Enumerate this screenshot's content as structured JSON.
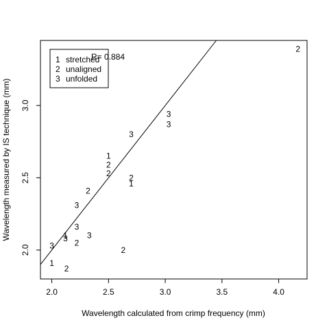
{
  "chart_data": {
    "type": "scatter",
    "title": "",
    "xlabel": "Wavelength calculated from crimp frequency (mm)",
    "ylabel": "Wavelength measured by IS technique (mm)",
    "xlim": [
      1.9,
      4.25
    ],
    "ylim": [
      1.8,
      3.45
    ],
    "x_ticks": [
      2.0,
      2.5,
      3.0,
      3.5,
      4.0
    ],
    "x_tick_labels": [
      "2.0",
      "2.5",
      "3.0",
      "3.5",
      "4.0"
    ],
    "y_ticks": [
      2.0,
      2.5,
      3.0
    ],
    "y_tick_labels": [
      "2.0",
      "2.5",
      "3.0"
    ],
    "grid": false,
    "legend": {
      "placement": "top-left",
      "entries": [
        {
          "symbol": "1",
          "label": "stretched"
        },
        {
          "symbol": "2",
          "label": "unaligned"
        },
        {
          "symbol": "3",
          "label": "unfolded"
        }
      ]
    },
    "annotation": "R= 0.884",
    "fit_line": {
      "slope": 1.0,
      "intercept": 0.0
    },
    "series": [
      {
        "symbol": "1",
        "points": [
          {
            "x": 2.0,
            "y": 1.91
          },
          {
            "x": 2.12,
            "y": 2.1
          },
          {
            "x": 2.5,
            "y": 2.65
          },
          {
            "x": 2.7,
            "y": 2.46
          }
        ]
      },
      {
        "symbol": "2",
        "points": [
          {
            "x": 2.13,
            "y": 1.87
          },
          {
            "x": 2.22,
            "y": 2.05
          },
          {
            "x": 2.32,
            "y": 2.41
          },
          {
            "x": 2.5,
            "y": 2.59
          },
          {
            "x": 2.5,
            "y": 2.53
          },
          {
            "x": 2.63,
            "y": 2.0
          },
          {
            "x": 2.7,
            "y": 2.5
          },
          {
            "x": 4.17,
            "y": 3.39
          }
        ]
      },
      {
        "symbol": "3",
        "points": [
          {
            "x": 2.0,
            "y": 2.03
          },
          {
            "x": 2.12,
            "y": 2.08
          },
          {
            "x": 2.22,
            "y": 2.16
          },
          {
            "x": 2.22,
            "y": 2.31
          },
          {
            "x": 2.33,
            "y": 2.1
          },
          {
            "x": 2.7,
            "y": 2.8
          },
          {
            "x": 3.03,
            "y": 2.94
          },
          {
            "x": 3.03,
            "y": 2.87
          }
        ]
      }
    ]
  }
}
